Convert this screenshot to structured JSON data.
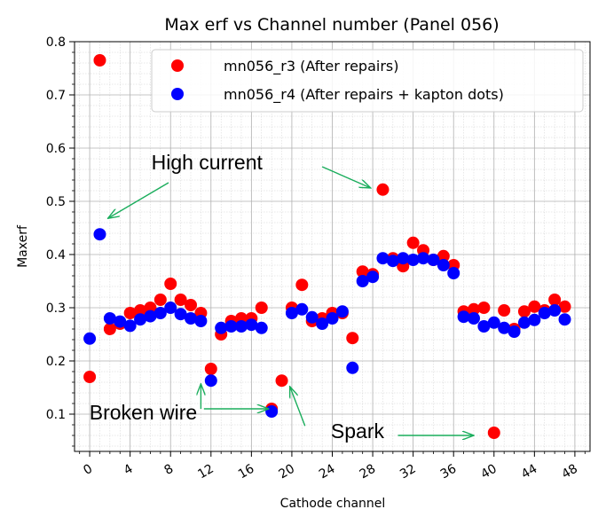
{
  "chart_data": {
    "type": "scatter",
    "title": "Max erf vs Channel number (Panel 056)",
    "xlabel": "Cathode channel",
    "ylabel": "Maxerf",
    "xlim": [
      -1.5,
      49.5
    ],
    "ylim": [
      0.03,
      0.8
    ],
    "x_ticks": [
      0,
      4,
      8,
      12,
      16,
      20,
      24,
      28,
      32,
      36,
      40,
      44,
      48
    ],
    "y_ticks": [
      0.1,
      0.2,
      0.3,
      0.4,
      0.5,
      0.6,
      0.7,
      0.8
    ],
    "grid": true,
    "legend_position": "top-right",
    "series": [
      {
        "name": "mn056_r3 (After repairs)",
        "color": "#ff0000",
        "points": [
          [
            0,
            0.17
          ],
          [
            1,
            0.765
          ],
          [
            2,
            0.26
          ],
          [
            3,
            0.27
          ],
          [
            4,
            0.29
          ],
          [
            5,
            0.295
          ],
          [
            6,
            0.3
          ],
          [
            7,
            0.315
          ],
          [
            8,
            0.345
          ],
          [
            9,
            0.315
          ],
          [
            10,
            0.305
          ],
          [
            11,
            0.29
          ],
          [
            12,
            0.185
          ],
          [
            13,
            0.25
          ],
          [
            14,
            0.275
          ],
          [
            15,
            0.28
          ],
          [
            16,
            0.28
          ],
          [
            17,
            0.3
          ],
          [
            18,
            0.11
          ],
          [
            19,
            0.163
          ],
          [
            20,
            0.3
          ],
          [
            21,
            0.343
          ],
          [
            22,
            0.275
          ],
          [
            23,
            0.28
          ],
          [
            24,
            0.29
          ],
          [
            25,
            0.29
          ],
          [
            26,
            0.243
          ],
          [
            27,
            0.368
          ],
          [
            28,
            0.363
          ],
          [
            29,
            0.522
          ],
          [
            30,
            0.393
          ],
          [
            31,
            0.378
          ],
          [
            32,
            0.422
          ],
          [
            33,
            0.408
          ],
          [
            34,
            0.39
          ],
          [
            35,
            0.397
          ],
          [
            36,
            0.38
          ],
          [
            37,
            0.293
          ],
          [
            38,
            0.297
          ],
          [
            39,
            0.3
          ],
          [
            40,
            0.065
          ],
          [
            41,
            0.295
          ],
          [
            42,
            0.26
          ],
          [
            43,
            0.293
          ],
          [
            44,
            0.302
          ],
          [
            45,
            0.295
          ],
          [
            46,
            0.315
          ],
          [
            47,
            0.302
          ]
        ]
      },
      {
        "name": "mn056_r4 (After repairs + kapton dots)",
        "color": "#0000ff",
        "points": [
          [
            0,
            0.242
          ],
          [
            1,
            0.438
          ],
          [
            2,
            0.28
          ],
          [
            3,
            0.274
          ],
          [
            4,
            0.266
          ],
          [
            5,
            0.278
          ],
          [
            6,
            0.284
          ],
          [
            7,
            0.29
          ],
          [
            8,
            0.3
          ],
          [
            9,
            0.288
          ],
          [
            10,
            0.28
          ],
          [
            11,
            0.275
          ],
          [
            12,
            0.163
          ],
          [
            13,
            0.262
          ],
          [
            14,
            0.265
          ],
          [
            15,
            0.265
          ],
          [
            16,
            0.268
          ],
          [
            17,
            0.262
          ],
          [
            18,
            0.105
          ],
          [
            20,
            0.29
          ],
          [
            21,
            0.297
          ],
          [
            22,
            0.282
          ],
          [
            23,
            0.27
          ],
          [
            24,
            0.28
          ],
          [
            25,
            0.293
          ],
          [
            26,
            0.187
          ],
          [
            27,
            0.35
          ],
          [
            28,
            0.358
          ],
          [
            29,
            0.393
          ],
          [
            30,
            0.388
          ],
          [
            31,
            0.393
          ],
          [
            32,
            0.39
          ],
          [
            33,
            0.393
          ],
          [
            34,
            0.39
          ],
          [
            35,
            0.38
          ],
          [
            36,
            0.365
          ],
          [
            37,
            0.283
          ],
          [
            38,
            0.28
          ],
          [
            39,
            0.265
          ],
          [
            40,
            0.272
          ],
          [
            41,
            0.262
          ],
          [
            42,
            0.255
          ],
          [
            43,
            0.272
          ],
          [
            44,
            0.277
          ],
          [
            45,
            0.29
          ],
          [
            46,
            0.295
          ],
          [
            47,
            0.278
          ]
        ]
      }
    ],
    "annotations": [
      {
        "text": "High current",
        "anchor": [
          11.6,
          0.56
        ]
      },
      {
        "text": "Broken wire",
        "anchor": [
          5.3,
          0.09
        ]
      },
      {
        "text": "Spark",
        "anchor": [
          26.5,
          0.055
        ]
      }
    ],
    "arrows": [
      {
        "from": [
          7.8,
          0.535
        ],
        "to": [
          1.8,
          0.468
        ]
      },
      {
        "from": [
          23.0,
          0.565
        ],
        "to": [
          27.8,
          0.525
        ]
      },
      {
        "from": [
          11.0,
          0.11
        ],
        "to": [
          11.0,
          0.157
        ]
      },
      {
        "from": [
          11.3,
          0.11
        ],
        "to": [
          17.7,
          0.11
        ]
      },
      {
        "from": [
          21.3,
          0.078
        ],
        "to": [
          19.8,
          0.152
        ]
      },
      {
        "from": [
          30.5,
          0.06
        ],
        "to": [
          38.0,
          0.06
        ]
      }
    ]
  }
}
